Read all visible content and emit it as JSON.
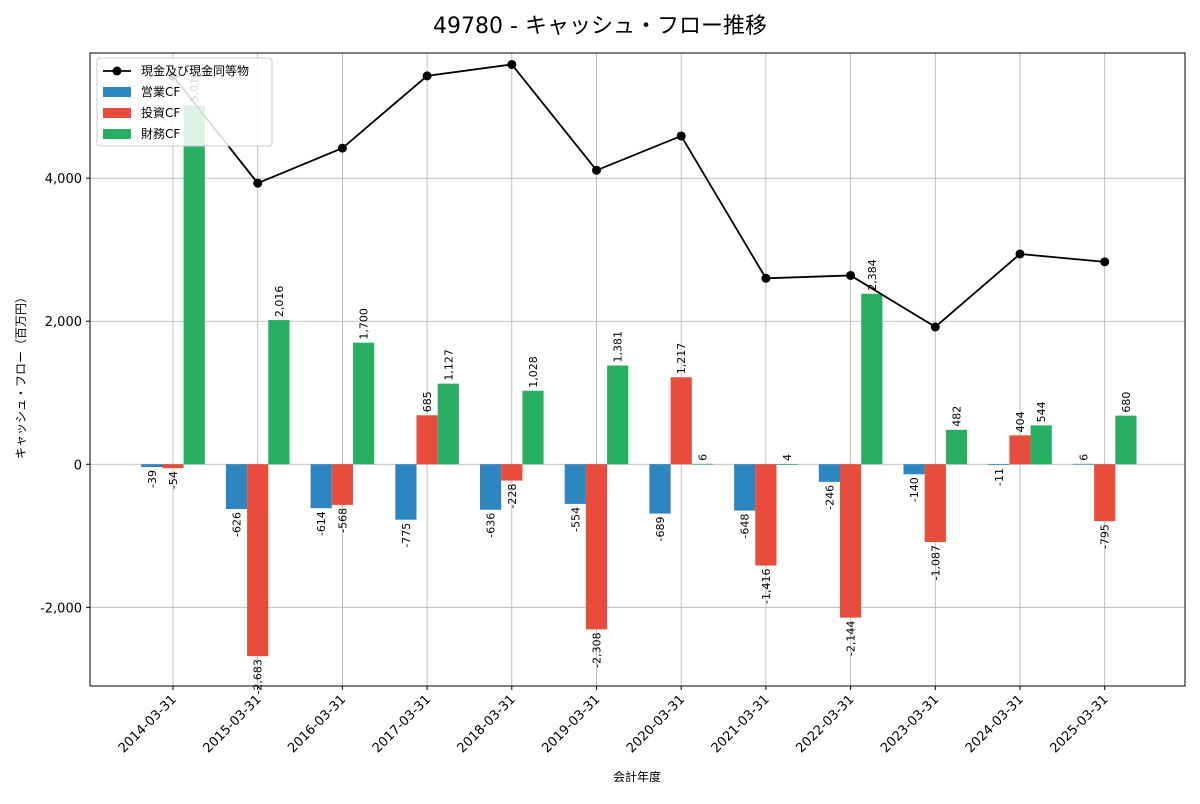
{
  "chart_data": {
    "type": "bar",
    "title": "49780 - キャッシュ・フロー推移",
    "xlabel": "会計年度",
    "ylabel": "キャッシュ・フロー（百万円）",
    "categories": [
      "2014-03-31",
      "2015-03-31",
      "2016-03-31",
      "2017-03-31",
      "2018-03-31",
      "2019-03-31",
      "2020-03-31",
      "2021-03-31",
      "2022-03-31",
      "2023-03-31",
      "2024-03-31",
      "2025-03-31"
    ],
    "ylim": [
      -3100,
      5750
    ],
    "yticks": [
      -2000,
      0,
      2000,
      4000
    ],
    "ytick_labels": [
      "-2,000",
      "0",
      "2,000",
      "4,000"
    ],
    "grid": true,
    "legend_position": "top-left",
    "series": [
      {
        "name": "営業CF",
        "type": "bar",
        "color": "#2e86c1",
        "values": [
          -39,
          -626,
          -614,
          -775,
          -636,
          -554,
          -689,
          -648,
          -246,
          -140,
          -11,
          6
        ],
        "labels": [
          "-39",
          "-626",
          "-614",
          "-775",
          "-636",
          "-554",
          "-689",
          "-648",
          "-246",
          "-140",
          "-11",
          "6"
        ]
      },
      {
        "name": "投資CF",
        "type": "bar",
        "color": "#e74c3c",
        "values": [
          -54,
          -2683,
          -568,
          685,
          -228,
          -2308,
          1217,
          -1416,
          -2144,
          -1087,
          404,
          -795
        ],
        "labels": [
          "-54",
          "-2,683",
          "-568",
          "685",
          "-228",
          "-2,308",
          "1,217",
          "-1,416",
          "-2,144",
          "-1,087",
          "404",
          "-795"
        ]
      },
      {
        "name": "財務CF",
        "type": "bar",
        "color": "#27ae60",
        "values": [
          5018,
          2016,
          1700,
          1127,
          1028,
          1381,
          6,
          4,
          2384,
          482,
          544,
          680
        ],
        "labels": [
          "5,018",
          "2,016",
          "1,700",
          "1,127",
          "1,028",
          "1,381",
          "6",
          "4",
          "2,384",
          "482",
          "544",
          "680"
        ]
      },
      {
        "name": "現金及び現金同等物",
        "type": "line",
        "color": "#000000",
        "values": [
          5430,
          3930,
          4420,
          5430,
          5590,
          4110,
          4590,
          2600,
          2640,
          1920,
          2940,
          2830
        ]
      }
    ]
  }
}
